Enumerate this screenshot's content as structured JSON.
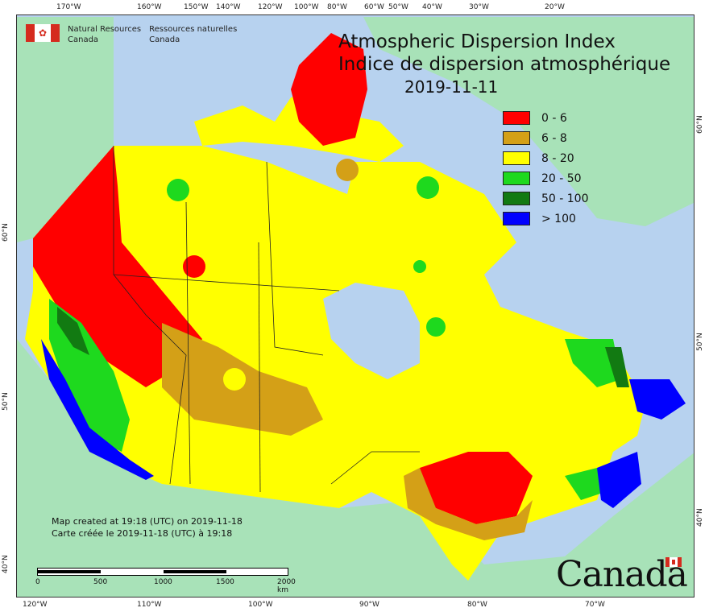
{
  "map": {
    "title_en": "Atmospheric Dispersion Index",
    "title_fr": "Indice de dispersion atmosphérique",
    "date": "2019-11-11"
  },
  "agency": {
    "name_en_line1": "Natural Resources",
    "name_en_line2": "Canada",
    "name_fr_line1": "Ressources naturelles",
    "name_fr_line2": "Canada",
    "wordmark": "Canada"
  },
  "legend": [
    {
      "label": "0 - 6",
      "color": "#ff0000"
    },
    {
      "label": "6 - 8",
      "color": "#d4a017"
    },
    {
      "label": "8 - 20",
      "color": "#ffff00"
    },
    {
      "label": "20 - 50",
      "color": "#1ed91e"
    },
    {
      "label": "50 - 100",
      "color": "#127a12"
    },
    {
      "label": "> 100",
      "color": "#0000ff"
    }
  ],
  "credit": {
    "line_en": "Map created at 19:18 (UTC) on 2019-11-18",
    "line_fr": "Carte créée le 2019-11-18 (UTC) à 19:18"
  },
  "scale": {
    "labels": [
      "0",
      "500",
      "1000",
      "1500",
      "2000 km"
    ]
  },
  "graticule": {
    "top": [
      "170°W",
      "160°W",
      "150°W",
      "140°W",
      "120°W",
      "100°W",
      "80°W",
      "60°W",
      "50°W",
      "40°W",
      "30°W",
      "20°W"
    ],
    "bottom": [
      "120°W",
      "110°W",
      "100°W",
      "90°W",
      "80°W",
      "70°W"
    ],
    "left": [
      "60°N",
      "50°N",
      "40°N"
    ],
    "right": [
      "60°N",
      "50°N",
      "40°N"
    ]
  },
  "colors": {
    "water": "#b7d2ef",
    "land_outside": "#a8e2b8",
    "border": "#222222"
  }
}
